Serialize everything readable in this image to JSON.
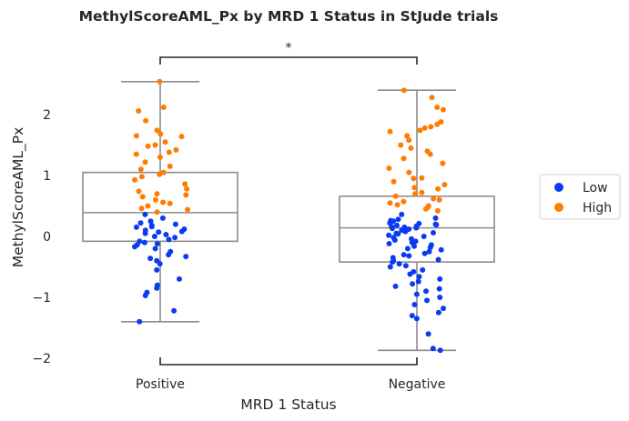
{
  "chart_data": {
    "type": "box",
    "title": "MethylScoreAML_Px by MRD 1 Status in StJude trials",
    "xlabel": "MRD 1 Status",
    "ylabel": "MethylScoreAML_Px",
    "categories": [
      "Positive",
      "Negative"
    ],
    "y_ticks": [
      -2,
      -1,
      0,
      1,
      2
    ],
    "y_tick_labels": [
      "−2",
      "−1",
      "0",
      "1",
      "2"
    ],
    "ylim": [
      -2.2,
      2.85
    ],
    "grid": false,
    "legend": {
      "placement": "right",
      "entries": [
        {
          "label": "Low",
          "color": "#0a3bf2"
        },
        {
          "label": "High",
          "color": "#ff7c00"
        }
      ]
    },
    "box_color": "#8c8c8c",
    "boxes": [
      {
        "category": "Positive",
        "whisker_low": -1.4,
        "q1": -0.08,
        "median": 0.39,
        "q3": 1.05,
        "whisker_high": 2.54
      },
      {
        "category": "Negative",
        "whisker_low": -1.87,
        "q1": -0.42,
        "median": 0.14,
        "q3": 0.66,
        "whisker_high": 2.4
      }
    ],
    "significance": {
      "between": [
        "Positive",
        "Negative"
      ],
      "label": "*"
    },
    "points": [
      {
        "category": "Positive",
        "group": "High",
        "values": [
          2.54,
          2.12,
          2.06,
          1.9,
          1.74,
          1.68,
          1.65,
          1.64,
          1.55,
          1.5,
          1.48,
          1.42,
          1.38,
          1.35,
          1.3,
          1.22,
          1.15,
          1.1,
          1.05,
          1.02,
          0.98,
          0.93,
          0.86,
          0.78,
          0.74,
          0.7,
          0.68,
          0.65,
          0.6,
          0.56,
          0.54,
          0.5,
          0.46,
          0.44,
          0.4
        ]
      },
      {
        "category": "Positive",
        "group": "Low",
        "values": [
          0.36,
          0.3,
          0.25,
          0.22,
          0.2,
          0.18,
          0.16,
          0.15,
          0.12,
          0.1,
          0.08,
          0.07,
          0.05,
          0.03,
          0.0,
          -0.02,
          -0.05,
          -0.08,
          -0.1,
          -0.12,
          -0.14,
          -0.17,
          -0.2,
          -0.25,
          -0.3,
          -0.33,
          -0.36,
          -0.4,
          -0.45,
          -0.55,
          -0.7,
          -0.8,
          -0.85,
          -0.92,
          -0.97,
          -1.22,
          -1.4
        ]
      },
      {
        "category": "Negative",
        "group": "High",
        "values": [
          2.4,
          2.28,
          2.12,
          2.08,
          1.88,
          1.84,
          1.8,
          1.78,
          1.74,
          1.72,
          1.65,
          1.58,
          1.5,
          1.45,
          1.4,
          1.35,
          1.28,
          1.2,
          1.12,
          1.05,
          0.96,
          0.95,
          0.9,
          0.85,
          0.8,
          0.78,
          0.72,
          0.7,
          0.66,
          0.62,
          0.6,
          0.57,
          0.55,
          0.52,
          0.5,
          0.48,
          0.45,
          0.42
        ]
      },
      {
        "category": "Negative",
        "group": "Low",
        "values": [
          0.36,
          0.3,
          0.28,
          0.26,
          0.25,
          0.22,
          0.21,
          0.2,
          0.19,
          0.18,
          0.17,
          0.16,
          0.15,
          0.14,
          0.13,
          0.12,
          0.1,
          0.08,
          0.06,
          0.05,
          0.04,
          0.02,
          0.0,
          -0.02,
          -0.04,
          -0.06,
          -0.08,
          -0.1,
          -0.12,
          -0.14,
          -0.16,
          -0.18,
          -0.2,
          -0.22,
          -0.25,
          -0.28,
          -0.3,
          -0.32,
          -0.35,
          -0.38,
          -0.4,
          -0.42,
          -0.45,
          -0.48,
          -0.5,
          -0.55,
          -0.58,
          -0.62,
          -0.66,
          -0.7,
          -0.74,
          -0.78,
          -0.82,
          -0.86,
          -0.9,
          -0.95,
          -1.0,
          -1.05,
          -1.12,
          -1.18,
          -1.25,
          -1.3,
          -1.35,
          -1.6,
          -1.84,
          -1.87
        ]
      }
    ]
  }
}
